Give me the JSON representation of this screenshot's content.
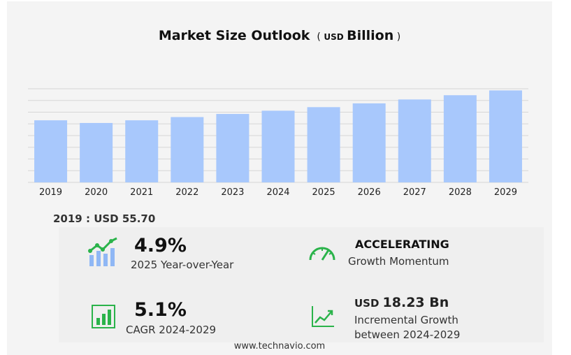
{
  "title": {
    "main": "Market Size Outlook",
    "unit_prefix": "USD",
    "unit_suffix": "Billion"
  },
  "baseline": "2019 : USD  55.70",
  "stats": {
    "yoy": {
      "value": "4.9%",
      "caption": "2025 Year-over-Year",
      "icon": "bar-growth-icon"
    },
    "momentum": {
      "value": "ACCELERATING",
      "caption": "Growth Momentum",
      "icon": "speedometer-icon"
    },
    "cagr": {
      "value": "5.1%",
      "caption": "CAGR 2024-2029",
      "icon": "bar-chart-icon"
    },
    "incremental": {
      "prefix": "USD",
      "value": "18.23 Bn",
      "caption1": "Incremental Growth",
      "caption2": "between 2024-2029",
      "icon": "line-chart-icon"
    }
  },
  "footer": "www.technavio.com",
  "colors": {
    "bar": "#a8c8fc",
    "accent": "#2ab34a",
    "grid": "#d6d6d6"
  },
  "chart_data": {
    "type": "bar",
    "categories": [
      "2019",
      "2020",
      "2021",
      "2022",
      "2023",
      "2024",
      "2025",
      "2026",
      "2027",
      "2028",
      "2029"
    ],
    "values": [
      55.7,
      53.3,
      55.7,
      58.6,
      61.4,
      64.3,
      67.5,
      70.9,
      74.4,
      78.2,
      82.5
    ],
    "title": "Market Size Outlook ( USD Billion )",
    "ylim": [
      0,
      84
    ],
    "grid": true
  }
}
